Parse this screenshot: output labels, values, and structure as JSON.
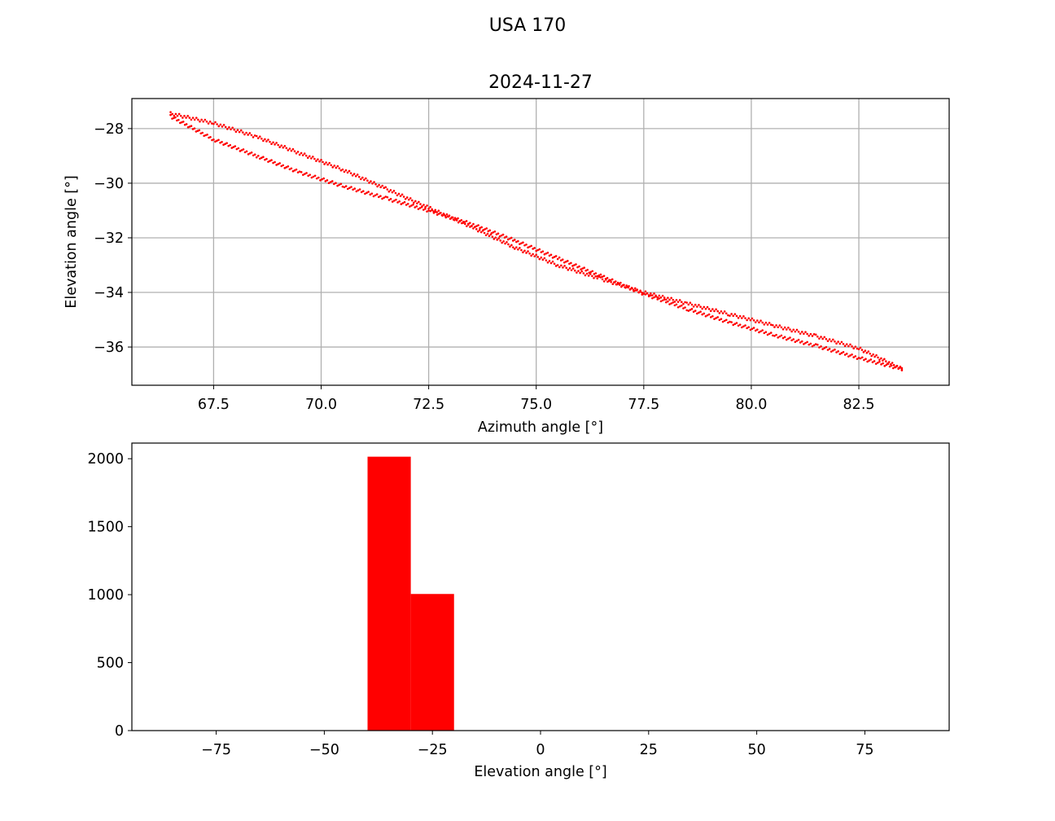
{
  "figure": {
    "suptitle": "USA 170"
  },
  "chart_data": [
    {
      "type": "scatter",
      "title": "2024-11-27",
      "xlabel": "Azimuth angle [°]",
      "ylabel": "Elevation angle [°]",
      "xlim": [
        65.6,
        84.6
      ],
      "ylim": [
        -37.4,
        -26.9
      ],
      "xticks": [
        67.5,
        70.0,
        72.5,
        75.0,
        77.5,
        80.0,
        82.5
      ],
      "xtick_labels": [
        "67.5",
        "70.0",
        "72.5",
        "75.0",
        "77.5",
        "80.0",
        "82.5"
      ],
      "yticks": [
        -28,
        -30,
        -32,
        -34,
        -36
      ],
      "ytick_labels": [
        "−28",
        "−30",
        "−32",
        "−34",
        "−36"
      ],
      "grid": true,
      "marker_color": "#ff0000",
      "marker_size": "small",
      "series": [
        {
          "shape": "closed elongated loop traced by many points",
          "x": [
            66.5,
            67.5,
            68.5,
            69.5,
            70.5,
            71.5,
            72.5,
            73.5,
            74.5,
            75.5,
            76.5,
            77.5,
            78.5,
            79.5,
            80.5,
            81.5,
            82.5,
            83.5,
            83.5,
            82.5,
            81.5,
            80.5,
            79.5,
            78.5,
            77.5,
            76.5,
            75.5,
            74.5,
            73.5,
            72.5,
            71.5,
            70.5,
            69.5,
            68.5,
            67.5,
            66.5
          ],
          "y": [
            -27.45,
            -27.8,
            -28.3,
            -28.9,
            -29.5,
            -30.2,
            -30.9,
            -31.6,
            -32.35,
            -33.0,
            -33.5,
            -34.0,
            -34.4,
            -34.8,
            -35.2,
            -35.6,
            -36.05,
            -36.8,
            -36.8,
            -36.4,
            -35.95,
            -35.55,
            -35.1,
            -34.6,
            -34.05,
            -33.4,
            -32.75,
            -32.1,
            -31.5,
            -31.0,
            -30.55,
            -30.1,
            -29.6,
            -29.0,
            -28.4,
            -27.55
          ]
        }
      ]
    },
    {
      "type": "bar",
      "subtype": "histogram",
      "xlabel": "Elevation angle [°]",
      "ylabel": "",
      "xlim": [
        -94.5,
        94.5
      ],
      "ylim": [
        0,
        2115
      ],
      "xticks": [
        -75,
        -50,
        -25,
        0,
        25,
        50,
        75
      ],
      "xtick_labels": [
        "−75",
        "−50",
        "−25",
        "0",
        "25",
        "50",
        "75"
      ],
      "yticks": [
        0,
        500,
        1000,
        1500,
        2000
      ],
      "ytick_labels": [
        "0",
        "500",
        "1000",
        "1500",
        "2000"
      ],
      "grid": false,
      "bar_color": "#ff0000",
      "bins": [
        {
          "from": -40,
          "to": -30,
          "count": 2015
        },
        {
          "from": -30,
          "to": -20,
          "count": 1005
        }
      ]
    }
  ]
}
